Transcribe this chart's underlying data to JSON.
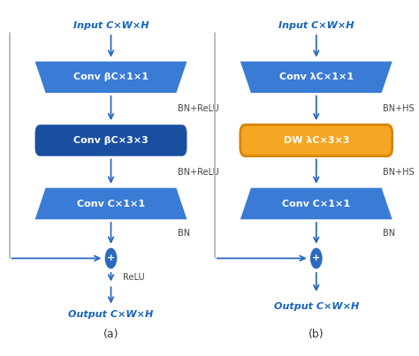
{
  "bg_color": "#ffffff",
  "blue_trap": "#3a7bd5",
  "blue_rect": "#1a4fa0",
  "yellow": "#f5a623",
  "yellow_border": "#d4850a",
  "text_white": "#ffffff",
  "label_color": "#1565c0",
  "text_gray": "#444444",
  "arrow_color": "#2a6abf",
  "skip_line_color": "#aaaaaa",
  "plus_color": "#2a6abf",
  "diagram_a": {
    "title": "Input C×W×H",
    "blocks": [
      {
        "label": "Conv βC×1×1",
        "color": "#3a7bd5",
        "shape": "trapezoid_down"
      },
      {
        "label": "Conv βC×3×3",
        "color": "#1a4fa0",
        "shape": "rect"
      },
      {
        "label": "Conv C×1×1",
        "color": "#3a7bd5",
        "shape": "trapezoid_up"
      }
    ],
    "between_labels": [
      "BN+ReLU",
      "BN+ReLU",
      "BN"
    ],
    "has_relu": true,
    "relu_label": "ReLU",
    "output": "Output C×W×H",
    "sublabel": "(a)"
  },
  "diagram_b": {
    "title": "Input C×W×H",
    "blocks": [
      {
        "label": "Conv λC×1×1",
        "color": "#3a7bd5",
        "shape": "trapezoid_down"
      },
      {
        "label": "DW λC×3×3",
        "color": "#f5a623",
        "shape": "rect"
      },
      {
        "label": "Conv C×1×1",
        "color": "#3a7bd5",
        "shape": "trapezoid_up"
      }
    ],
    "between_labels": [
      "BN+HS",
      "BN+HS",
      "BN"
    ],
    "has_relu": false,
    "relu_label": "",
    "output": "Output C×W×H",
    "sublabel": "(b)"
  }
}
